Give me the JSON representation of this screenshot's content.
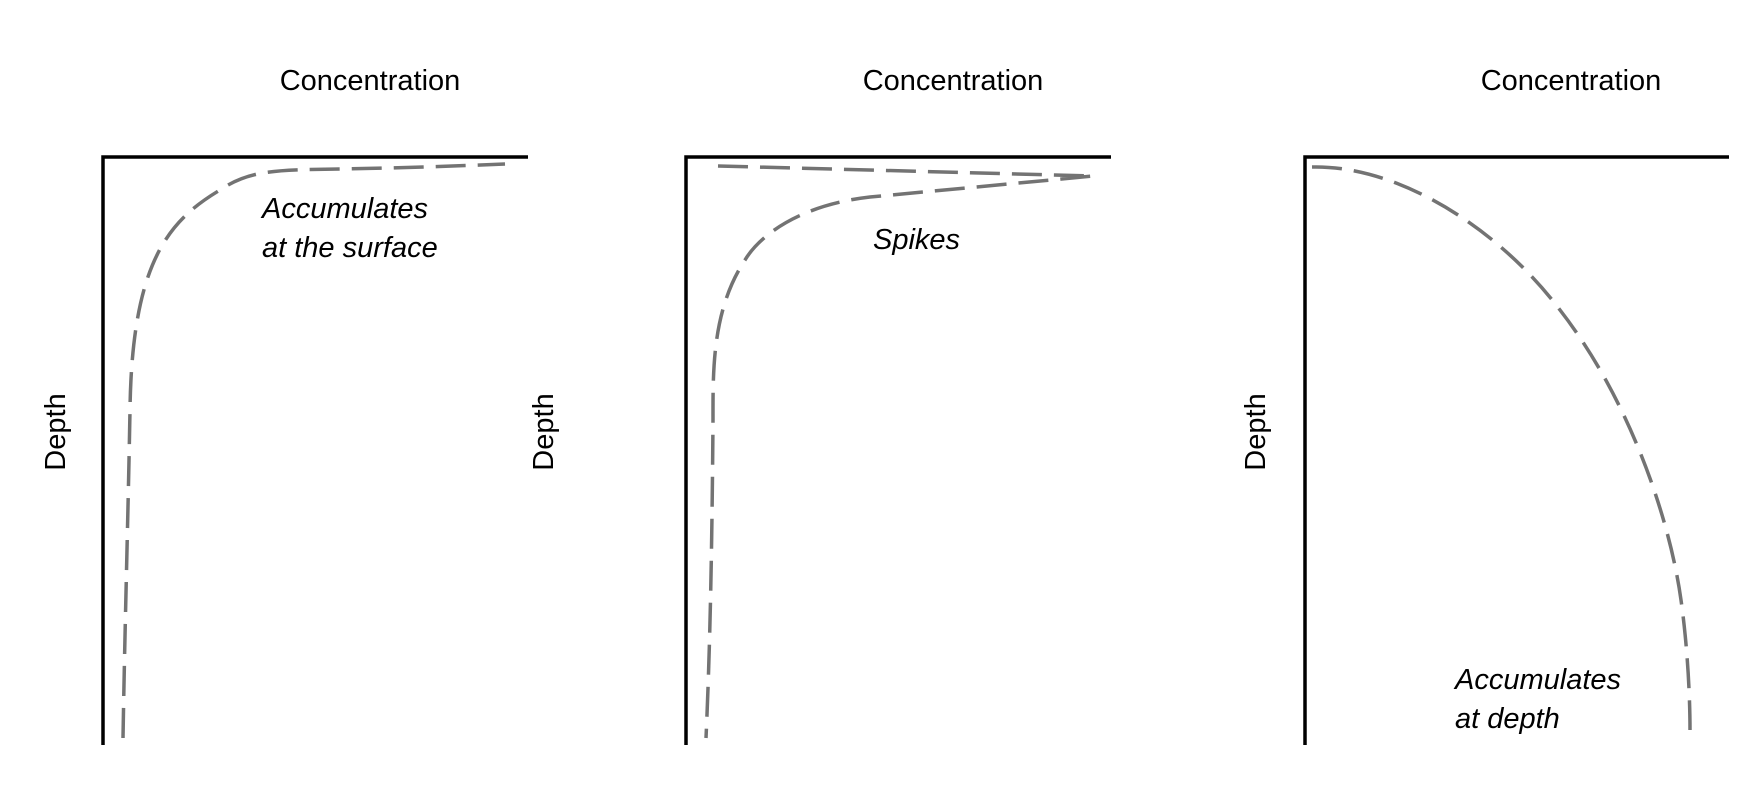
{
  "panels": [
    {
      "x_axis_label": "Concentration",
      "y_axis_label": "Depth",
      "annotation_lines": [
        "Accumulates",
        "at the surface"
      ],
      "profile": "surface"
    },
    {
      "x_axis_label": "Concentration",
      "y_axis_label": "Depth",
      "annotation_lines": [
        "Spikes"
      ],
      "profile": "spike"
    },
    {
      "x_axis_label": "Concentration",
      "y_axis_label": "Depth",
      "annotation_lines": [
        "Accumulates",
        "at depth"
      ],
      "profile": "depth"
    }
  ],
  "colors": {
    "axis": "#000000",
    "profile_line": "#737373",
    "background": "#ffffff"
  }
}
